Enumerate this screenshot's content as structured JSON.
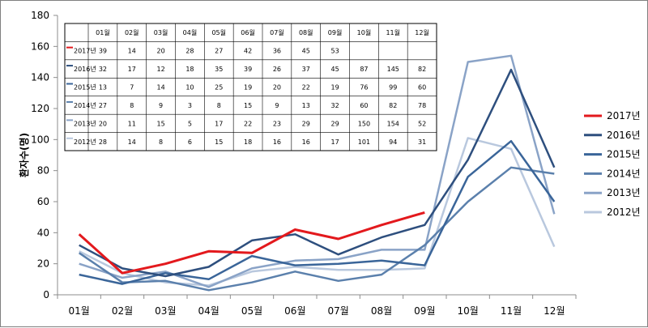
{
  "chart_data": {
    "type": "line",
    "ylabel": "환자수(명)",
    "ylim": [
      0,
      180
    ],
    "yticks": [
      0,
      20,
      40,
      60,
      80,
      100,
      120,
      140,
      160,
      180
    ],
    "grid": false,
    "legend_position": "right",
    "categories": [
      "01월",
      "02월",
      "03월",
      "04월",
      "05월",
      "06월",
      "07월",
      "08월",
      "09월",
      "10월",
      "11월",
      "12월"
    ],
    "series": [
      {
        "name": "2017년",
        "color": "#e3191d",
        "values": [
          39,
          14,
          20,
          28,
          27,
          42,
          36,
          45,
          53,
          null,
          null,
          null
        ]
      },
      {
        "name": "2016년",
        "color": "#2e4f7e",
        "values": [
          32,
          17,
          12,
          18,
          35,
          39,
          26,
          37,
          45,
          87,
          145,
          82
        ]
      },
      {
        "name": "2015년",
        "color": "#3a6599",
        "values": [
          13,
          7,
          14,
          10,
          25,
          19,
          20,
          22,
          19,
          76,
          99,
          60
        ]
      },
      {
        "name": "2014년",
        "color": "#5b80ac",
        "values": [
          27,
          8,
          9,
          3,
          8,
          15,
          9,
          13,
          32,
          60,
          82,
          78
        ]
      },
      {
        "name": "2013년",
        "color": "#8aa3c7",
        "values": [
          20,
          11,
          15,
          5,
          17,
          22,
          23,
          29,
          29,
          150,
          154,
          52
        ]
      },
      {
        "name": "2012년",
        "color": "#b9c8de",
        "values": [
          28,
          14,
          8,
          6,
          15,
          18,
          16,
          16,
          17,
          101,
          94,
          31
        ]
      }
    ],
    "data_table": {
      "header": [
        "01월",
        "02월",
        "03월",
        "04월",
        "05월",
        "06월",
        "07월",
        "08월",
        "09월",
        "10월",
        "11월",
        "12월"
      ],
      "rows": [
        {
          "label": "2017년",
          "color": "#e3191d",
          "cells": [
            "39",
            "14",
            "20",
            "28",
            "27",
            "42",
            "36",
            "45",
            "53",
            "",
            "",
            ""
          ]
        },
        {
          "label": "2016년",
          "color": "#2e4f7e",
          "cells": [
            "32",
            "17",
            "12",
            "18",
            "35",
            "39",
            "26",
            "37",
            "45",
            "87",
            "145",
            "82"
          ]
        },
        {
          "label": "2015년",
          "color": "#3a6599",
          "cells": [
            "13",
            "7",
            "14",
            "10",
            "25",
            "19",
            "20",
            "22",
            "19",
            "76",
            "99",
            "60"
          ]
        },
        {
          "label": "2014년",
          "color": "#5b80ac",
          "cells": [
            "27",
            "8",
            "9",
            "3",
            "8",
            "15",
            "9",
            "13",
            "32",
            "60",
            "82",
            "78"
          ]
        },
        {
          "label": "2013년",
          "color": "#8aa3c7",
          "cells": [
            "20",
            "11",
            "15",
            "5",
            "17",
            "22",
            "23",
            "29",
            "29",
            "150",
            "154",
            "52"
          ]
        },
        {
          "label": "2012년",
          "color": "#b9c8de",
          "cells": [
            "28",
            "14",
            "8",
            "6",
            "15",
            "18",
            "16",
            "16",
            "17",
            "101",
            "94",
            "31"
          ]
        }
      ]
    }
  }
}
